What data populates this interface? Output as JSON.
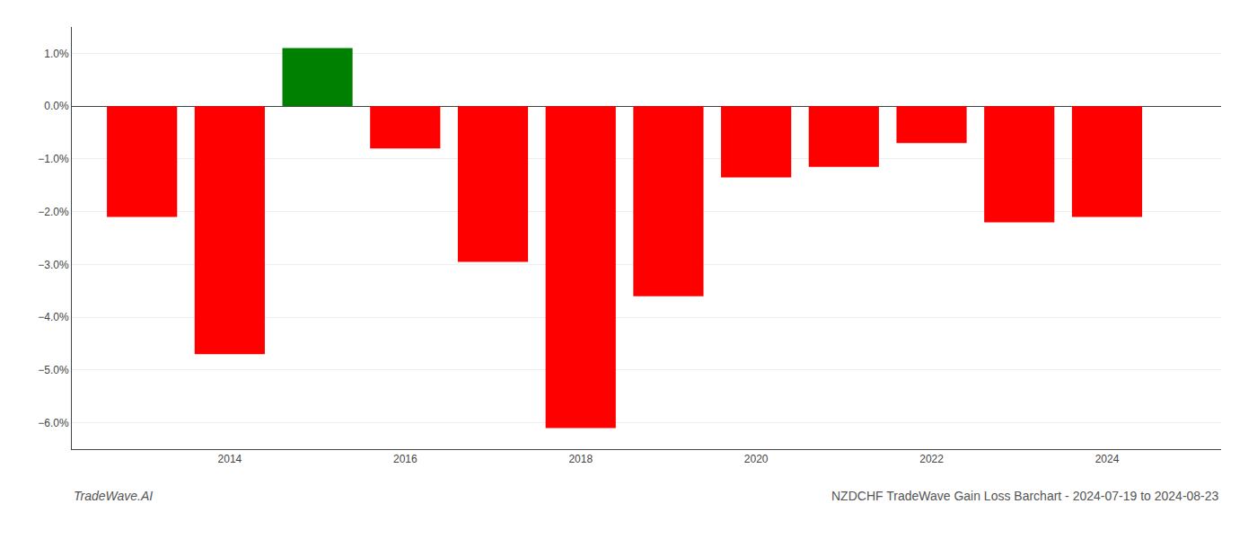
{
  "chart_data": {
    "type": "bar",
    "title": "NZDCHF TradeWave Gain Loss Barchart - 2024-07-19 to 2024-08-23",
    "annotations": [
      "TradeWave.AI"
    ],
    "x": [
      2013,
      2014,
      2015,
      2016,
      2017,
      2018,
      2019,
      2020,
      2021,
      2022,
      2023,
      2024
    ],
    "values": [
      -2.1,
      -4.7,
      1.1,
      -0.8,
      -2.95,
      -6.1,
      -3.6,
      -1.35,
      -1.15,
      -0.7,
      -2.2,
      -2.1
    ],
    "colors": [
      "#ff0000",
      "#ff0000",
      "#008000",
      "#ff0000",
      "#ff0000",
      "#ff0000",
      "#ff0000",
      "#ff0000",
      "#ff0000",
      "#ff0000",
      "#ff0000",
      "#ff0000"
    ],
    "xlim": [
      2012.2,
      2025.3
    ],
    "xticks": [
      2014,
      2016,
      2018,
      2020,
      2022,
      2024
    ],
    "ylim": [
      -6.5,
      1.5
    ],
    "yticks": [
      {
        "value": 1.0,
        "label": "1.0%"
      },
      {
        "value": 0.0,
        "label": "0.0%"
      },
      {
        "value": -1.0,
        "label": "−1.0%"
      },
      {
        "value": -2.0,
        "label": "−2.0%"
      },
      {
        "value": -3.0,
        "label": "−3.0%"
      },
      {
        "value": -4.0,
        "label": "−4.0%"
      },
      {
        "value": -5.0,
        "label": "−5.0%"
      },
      {
        "value": -6.0,
        "label": "−6.0%"
      }
    ],
    "grid": true
  }
}
